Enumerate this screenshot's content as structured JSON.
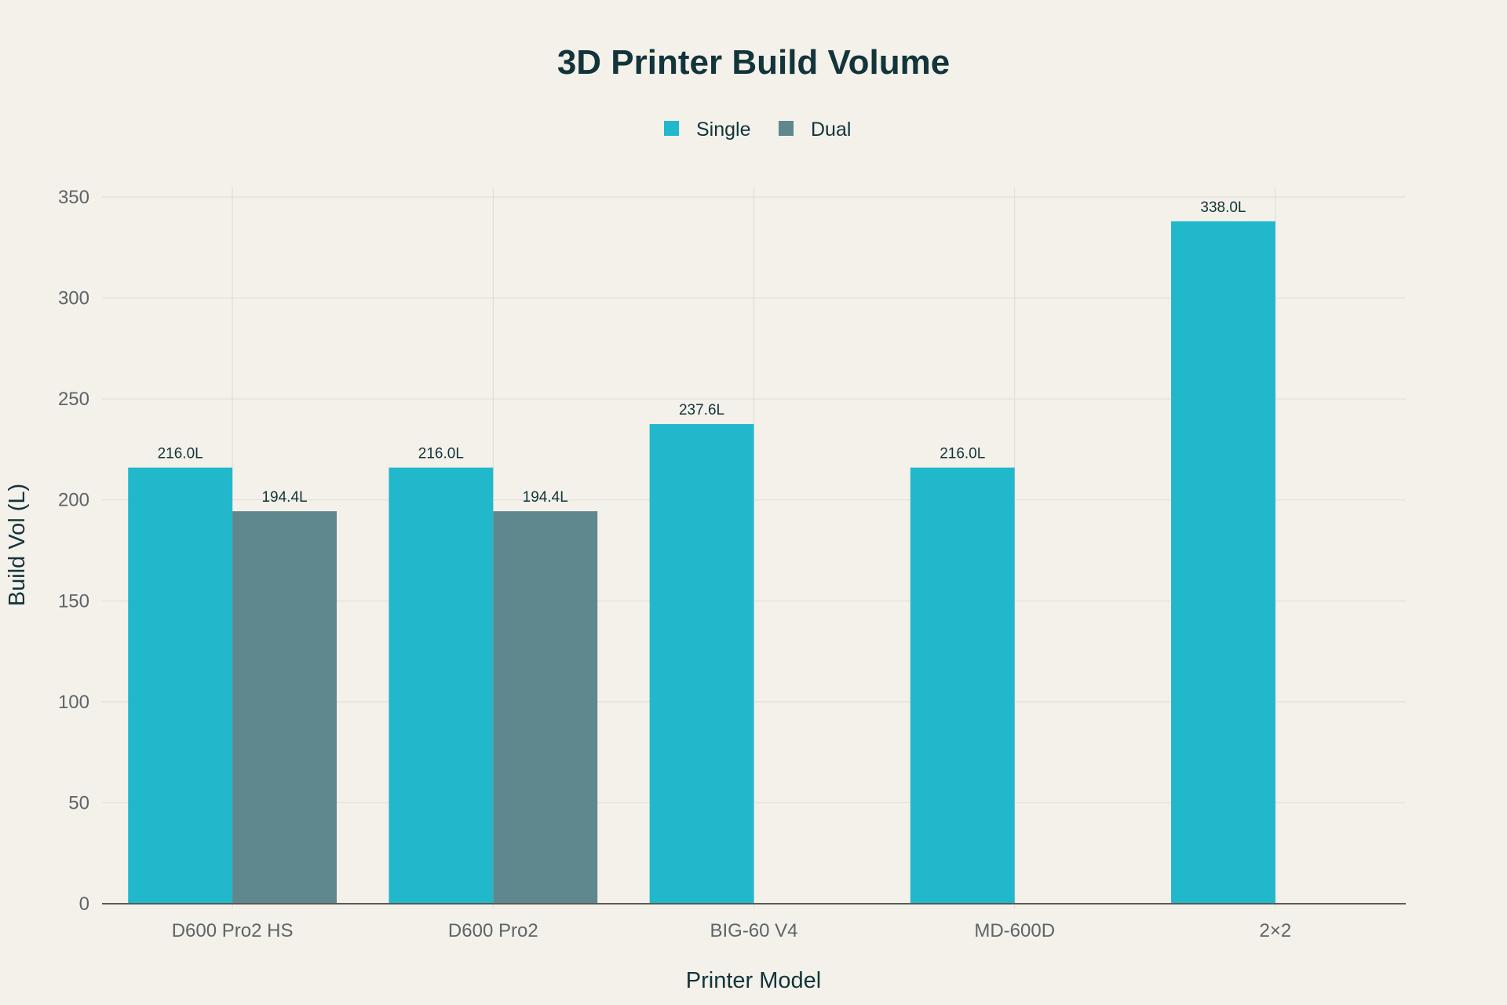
{
  "chart_data": {
    "type": "bar",
    "title": "3D Printer Build Volume",
    "xlabel": "Printer Model",
    "ylabel": "Build Vol (L)",
    "categories": [
      "D600 Pro2 HS",
      "D600 Pro2",
      "BIG-60 V4",
      "MD-600D",
      "2×2"
    ],
    "series": [
      {
        "name": "Single",
        "color": "#21b8cc",
        "values": [
          216.0,
          216.0,
          237.6,
          216.0,
          338.0
        ],
        "labels": [
          "216.0L",
          "216.0L",
          "237.6L",
          "216.0L",
          "338.0L"
        ]
      },
      {
        "name": "Dual",
        "color": "#5e878e",
        "values": [
          194.4,
          194.4,
          null,
          null,
          null
        ],
        "labels": [
          "194.4L",
          "194.4L",
          null,
          null,
          null
        ]
      }
    ],
    "ylim": [
      0,
      350
    ],
    "yticks": [
      0,
      50,
      100,
      150,
      200,
      250,
      300,
      350
    ],
    "grid": true,
    "legend_position": "top-center",
    "background": "#f3f1e9"
  }
}
